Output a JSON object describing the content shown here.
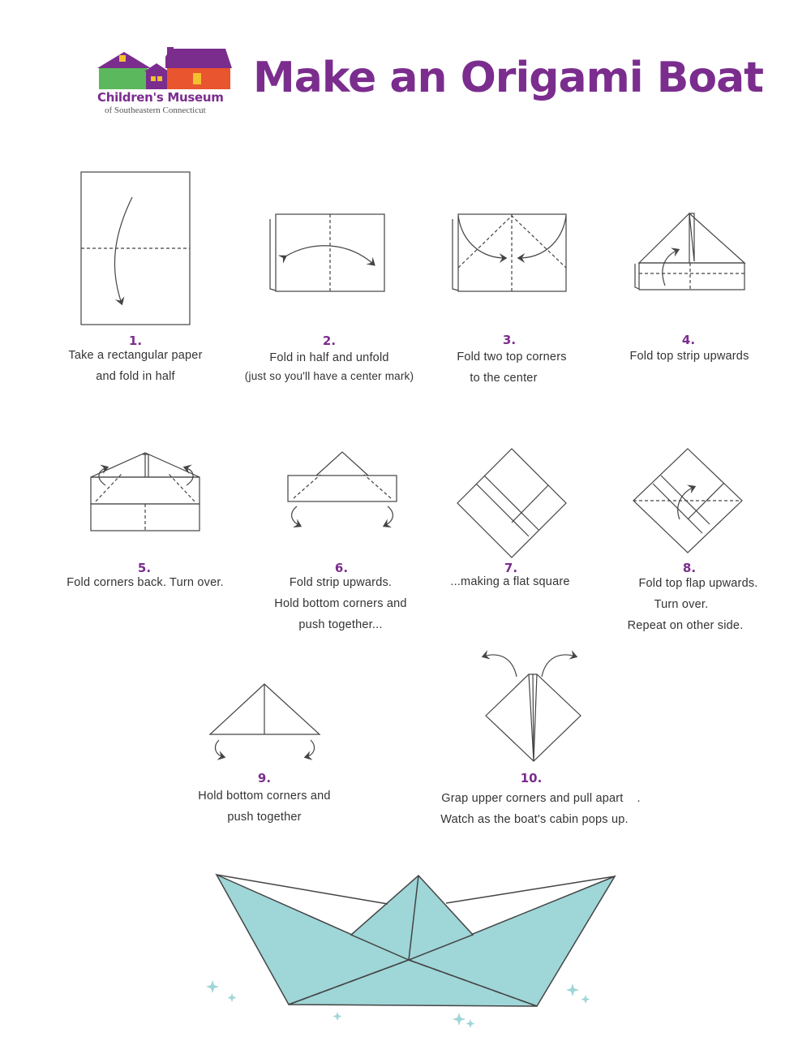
{
  "header": {
    "logo_name": "Children's Museum",
    "logo_sub": "of Southeastern Connecticut",
    "title": "Make an Origami Boat"
  },
  "colors": {
    "accent": "#7b2d8e",
    "boat": "#9fd6d8",
    "line": "#444444"
  },
  "steps": [
    {
      "num": "1.",
      "lines": [
        "Take a rectangular paper",
        "and fold in half"
      ]
    },
    {
      "num": "2.",
      "lines": [
        "Fold in half and unfold",
        "(just so you'll have a center mark)"
      ]
    },
    {
      "num": "3.",
      "lines": [
        "Fold two top corners",
        "to the center"
      ]
    },
    {
      "num": "4.",
      "lines": [
        "Fold top strip upwards"
      ]
    },
    {
      "num": "5.",
      "lines": [
        "Fold corners back. Turn over."
      ]
    },
    {
      "num": "6.",
      "lines": [
        "Fold strip upwards.",
        "Hold bottom corners and",
        "push together..."
      ]
    },
    {
      "num": "7.",
      "lines": [
        "...making a flat square"
      ]
    },
    {
      "num": "8.",
      "lines": [
        "Fold top flap upwards.",
        "Turn over.",
        "Repeat on other side."
      ]
    },
    {
      "num": "9.",
      "lines": [
        "Hold bottom corners and",
        "push together"
      ]
    },
    {
      "num": "10.",
      "lines": [
        "Grap upper corners and pull apart    .",
        "Watch as the boat's cabin pops up."
      ]
    }
  ]
}
